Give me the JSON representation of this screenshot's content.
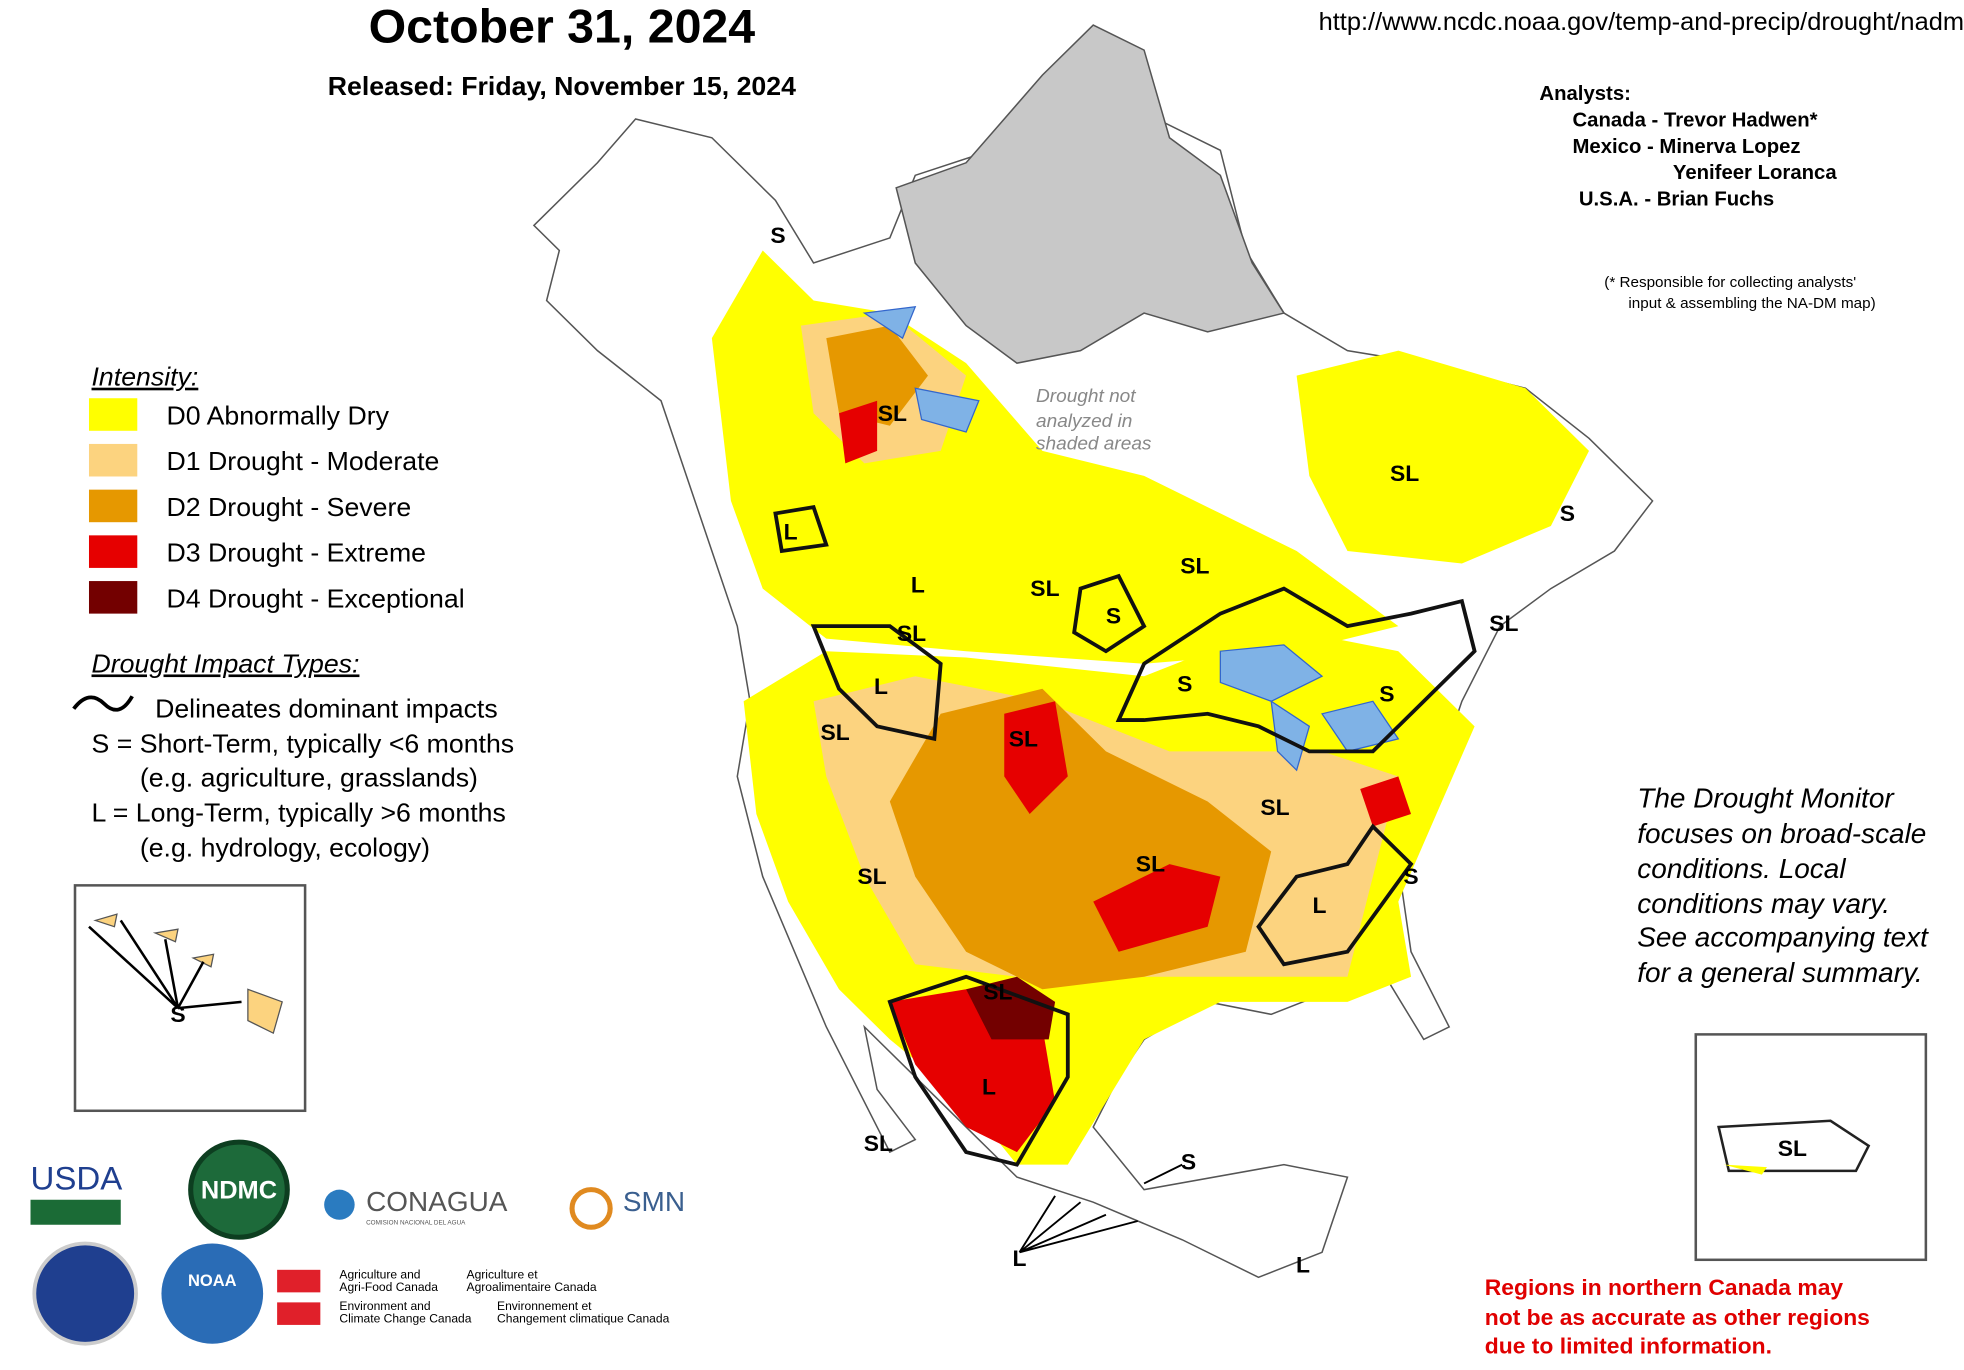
{
  "header": {
    "title": "October 31, 2024",
    "released": "Released: Friday, November 15, 2024",
    "url": "http://www.ncdc.noaa.gov/temp-and-precip/drought/nadm"
  },
  "analysts": {
    "heading": "Analysts:",
    "lines": [
      "Canada - Trevor Hadwen*",
      "Mexico -  Minerva Lopez",
      "Yenifeer Loranca",
      "U.S.A. -  Brian Fuchs"
    ],
    "note": [
      "(* Responsible for collecting analysts'",
      "input & assembling the NA-DM map)"
    ]
  },
  "legend": {
    "title": "Intensity:",
    "items": [
      {
        "label": "D0 Abnormally Dry",
        "color": "#ffff00"
      },
      {
        "label": "D1 Drought - Moderate",
        "color": "#fcd37f"
      },
      {
        "label": "D2 Drought - Severe",
        "color": "#e69800"
      },
      {
        "label": "D3 Drought - Extreme",
        "color": "#e60000"
      },
      {
        "label": "D4 Drought - Exceptional",
        "color": "#730000"
      }
    ]
  },
  "impacts": {
    "title": "Drought Impact Types:",
    "lines": [
      "Delineates dominant impacts",
      "S = Short-Term, typically <6 months",
      "(e.g. agriculture, grasslands)",
      "L = Long-Term, typically >6 months",
      "(e.g. hydrology, ecology)"
    ]
  },
  "map_note": [
    "Drought not",
    "analyzed in",
    "shaded areas"
  ],
  "map_labels": [
    "S",
    "SL",
    "L",
    "L",
    "SL",
    "SL",
    "S",
    "SL",
    "SL",
    "S",
    "SL",
    "S",
    "S",
    "L",
    "SL",
    "SL",
    "SL",
    "SL",
    "SL",
    "L",
    "S",
    "SL",
    "L",
    "SL",
    "S",
    "L",
    "L",
    "S",
    "SL"
  ],
  "disclaimer": [
    "The Drought Monitor",
    "focuses on broad-scale",
    "conditions.  Local",
    "conditions may vary.",
    "See accompanying text",
    "for a general summary."
  ],
  "warning": [
    "Regions in northern Canada may",
    "not be as accurate as other regions",
    "due to limited information."
  ],
  "logos": {
    "usda": "USDA",
    "ndmc": "NDMC",
    "conagua": "CONAGUA",
    "conagua_sub": "COMISION NACIONAL DEL AGUA",
    "smn": "SMN",
    "noaa": "NOAA",
    "canada": [
      "Agriculture and",
      "Agri-Food Canada",
      "Agriculture et",
      "Agroalimentaire Canada",
      "Environment and",
      "Climate Change Canada",
      "Environnement et",
      "Changement climatique Canada"
    ]
  }
}
